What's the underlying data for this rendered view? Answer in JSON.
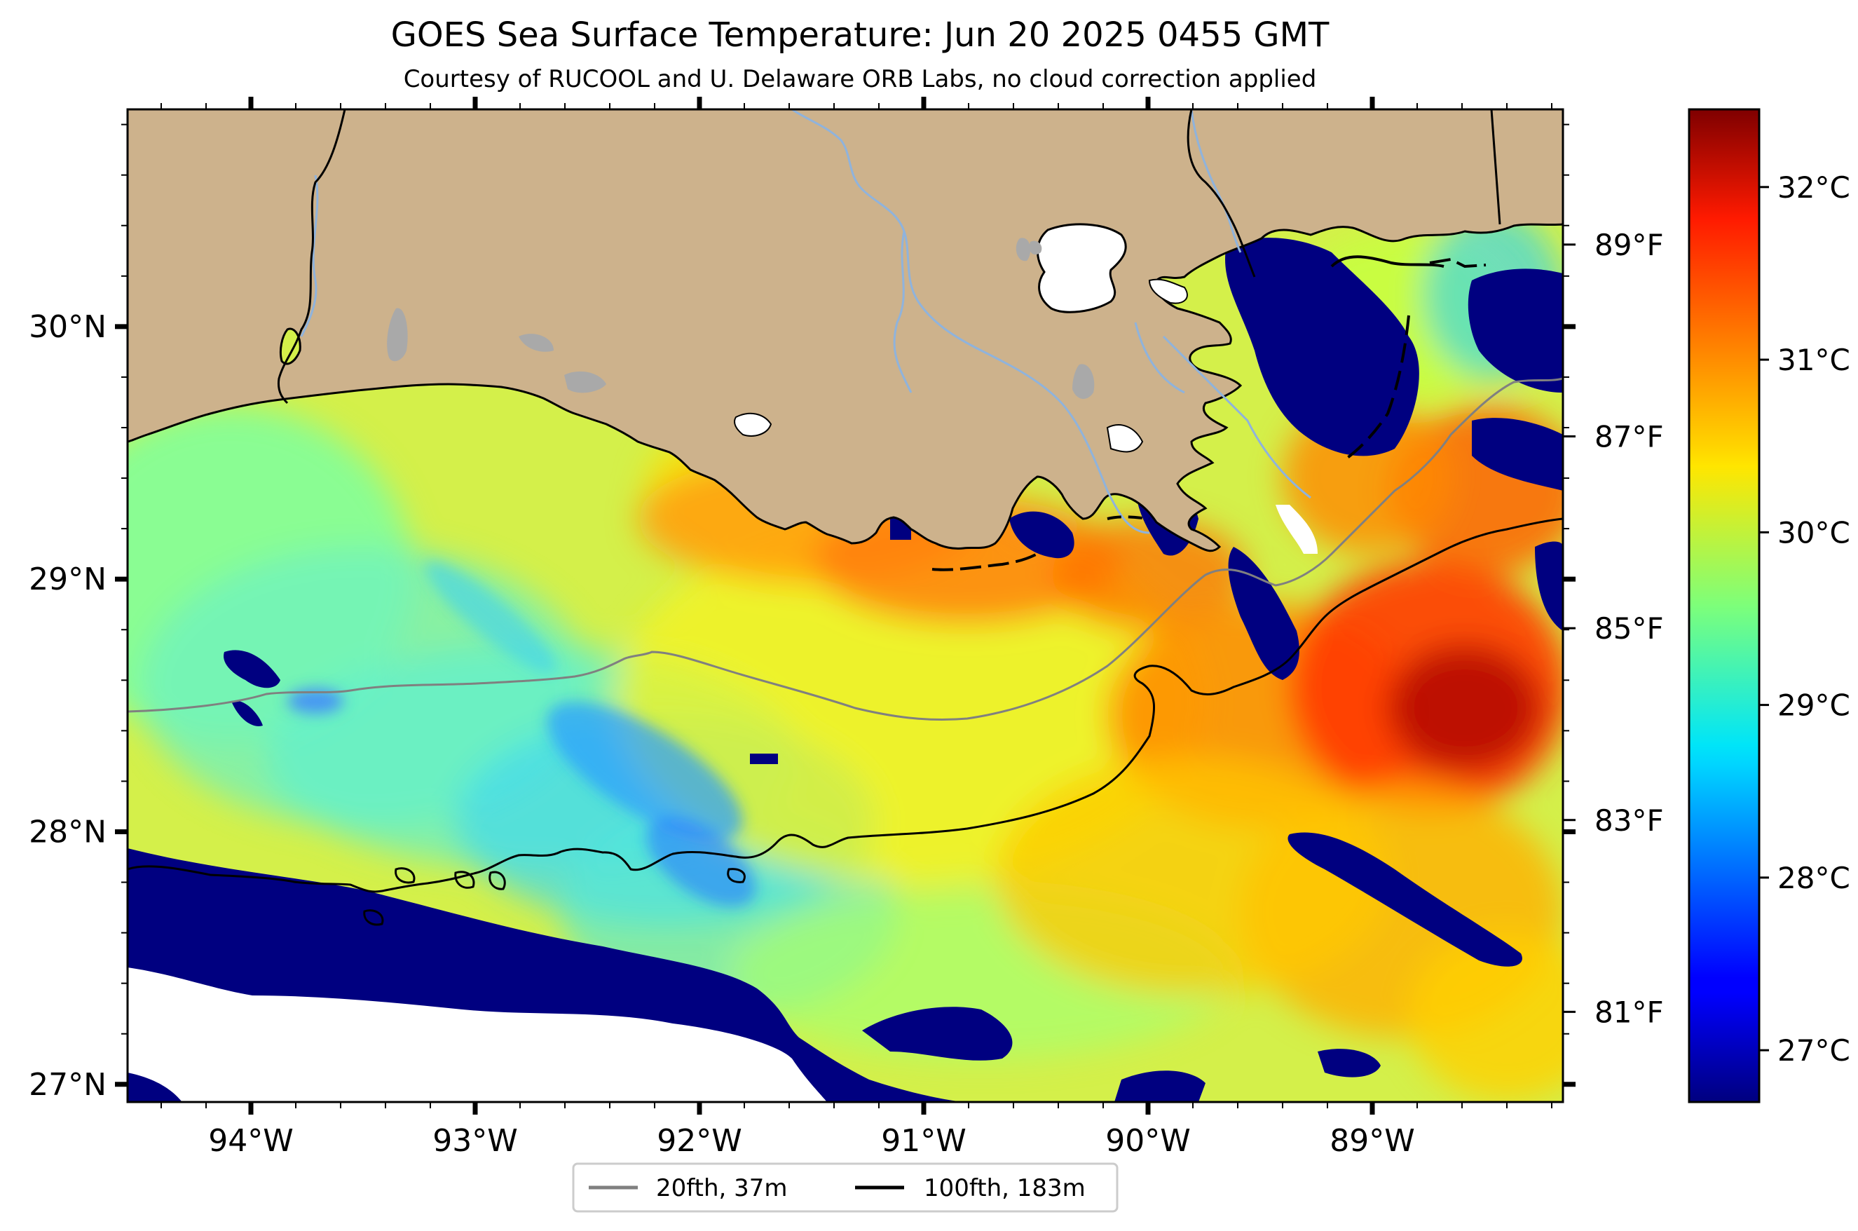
{
  "title": "GOES Sea Surface Temperature: Jun 20 2025 0455 GMT",
  "subtitle": "Courtesy of RUCOOL and U. Delaware ORB Labs, no cloud correction applied",
  "map": {
    "region": "Northern Gulf of Mexico, Louisiana shelf",
    "lon_range": [
      -94.55,
      -88.15
    ],
    "lat_range": [
      26.93,
      30.86
    ],
    "x_ticks": [
      {
        "lon": -94,
        "label": "94°W"
      },
      {
        "lon": -93,
        "label": "93°W"
      },
      {
        "lon": -92,
        "label": "92°W"
      },
      {
        "lon": -91,
        "label": "91°W"
      },
      {
        "lon": -90,
        "label": "90°W"
      },
      {
        "lon": -89,
        "label": "89°W"
      }
    ],
    "y_ticks": [
      {
        "lat": 27,
        "label": "27°N"
      },
      {
        "lat": 28,
        "label": "28°N"
      },
      {
        "lat": 29,
        "label": "29°N"
      },
      {
        "lat": 30,
        "label": "30°N"
      }
    ],
    "colors": {
      "land": "#cdb28c",
      "lakes": "#a9a9a9",
      "rivers": "#8fb3dc",
      "no_data": "#ffffff",
      "isobath_20fth": "#808080",
      "isobath_100fth": "#000000"
    }
  },
  "colorbar": {
    "colormap": "jet",
    "range_c": [
      26.7,
      32.45
    ],
    "celsius_ticks": [
      {
        "value": 27,
        "label": "27°C"
      },
      {
        "value": 28,
        "label": "28°C"
      },
      {
        "value": 29,
        "label": "29°C"
      },
      {
        "value": 30,
        "label": "30°C"
      },
      {
        "value": 31,
        "label": "31°C"
      },
      {
        "value": 32,
        "label": "32°C"
      }
    ],
    "fahrenheit_ticks": [
      {
        "value": 81,
        "label": "81°F"
      },
      {
        "value": 83,
        "label": "83°F"
      },
      {
        "value": 85,
        "label": "85°F"
      },
      {
        "value": 87,
        "label": "87°F"
      },
      {
        "value": 89,
        "label": "89°F"
      }
    ]
  },
  "legend": {
    "items": [
      {
        "label": "20fth, 37m",
        "color": "#808080"
      },
      {
        "label": "100fth, 183m",
        "color": "#000000"
      }
    ]
  }
}
